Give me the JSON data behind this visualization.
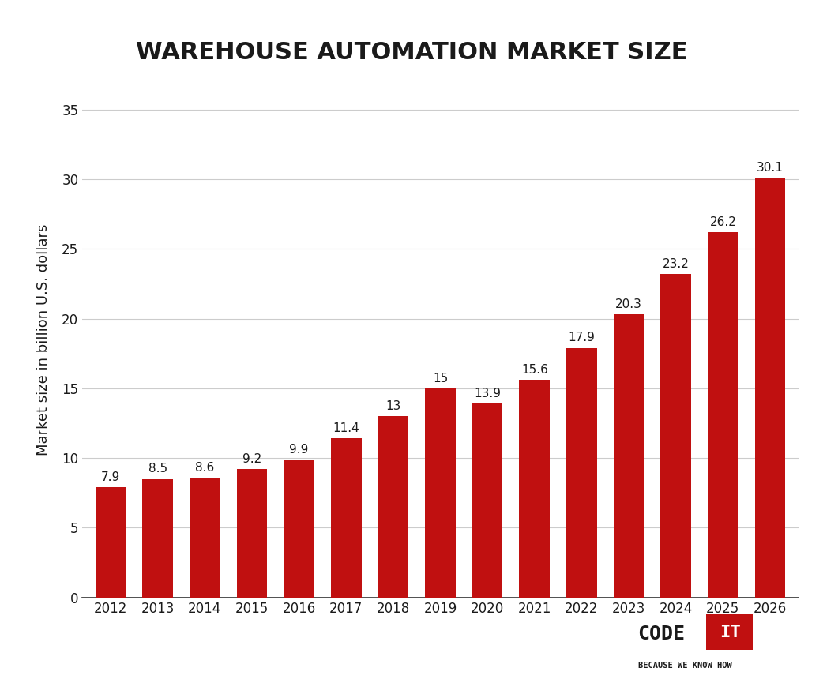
{
  "title": "WAREHOUSE AUTOMATION MARKET SIZE",
  "ylabel": "Market size in billion U.S. dollars",
  "years": [
    2012,
    2013,
    2014,
    2015,
    2016,
    2017,
    2018,
    2019,
    2020,
    2021,
    2022,
    2023,
    2024,
    2025,
    2026
  ],
  "values": [
    7.9,
    8.5,
    8.6,
    9.2,
    9.9,
    11.4,
    13,
    15,
    13.9,
    15.6,
    17.9,
    20.3,
    23.2,
    26.2,
    30.1
  ],
  "bar_color": "#C01010",
  "background_color": "#FFFFFF",
  "title_fontsize": 22,
  "ylabel_fontsize": 13,
  "tick_fontsize": 12,
  "label_fontsize": 11,
  "yticks": [
    0,
    5,
    10,
    15,
    20,
    25,
    30,
    35
  ],
  "ylim": [
    0,
    37
  ],
  "grid_color": "#CCCCCC",
  "text_color": "#1a1a1a",
  "logo_text_code": "CODE",
  "logo_text_it": "IT",
  "logo_text_sub": "BECAUSE WE KNOW HOW",
  "logo_box_color": "#C01010"
}
